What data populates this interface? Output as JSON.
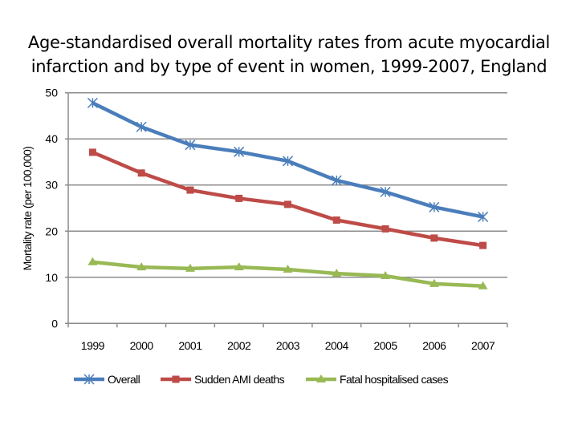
{
  "chart_data": {
    "type": "line",
    "title": "Age-standardised overall mortality rates from acute myocardial infarction and by type of event in women, 1999-2007, England",
    "title_lines": [
      "Age-standardised overall mortality rates from acute myocardial",
      "infarction and by type of event in women, 1999-2007, England"
    ],
    "xlabel": "",
    "ylabel": "Mortality rate (per 100,000)",
    "categories": [
      "1999",
      "2000",
      "2001",
      "2002",
      "2003",
      "2004",
      "2005",
      "2006",
      "2007"
    ],
    "ylim": [
      0,
      50
    ],
    "yticks": [
      0,
      10,
      20,
      30,
      40,
      50
    ],
    "grid": true,
    "legend": "bottom",
    "series": [
      {
        "name": "Overall",
        "color": "#4a7ebb",
        "marker": "asterisk",
        "values": [
          47.8,
          42.6,
          38.7,
          37.2,
          35.2,
          31.0,
          28.5,
          25.2,
          23.1
        ]
      },
      {
        "name": "Sudden AMI deaths",
        "color": "#be4b48",
        "marker": "square",
        "values": [
          37.1,
          32.6,
          28.9,
          27.1,
          25.8,
          22.4,
          20.5,
          18.5,
          16.9
        ]
      },
      {
        "name": "Fatal hospitalised cases",
        "color": "#98b954",
        "marker": "triangle",
        "values": [
          13.3,
          12.2,
          11.9,
          12.2,
          11.7,
          10.8,
          10.3,
          8.6,
          8.1
        ]
      }
    ]
  }
}
